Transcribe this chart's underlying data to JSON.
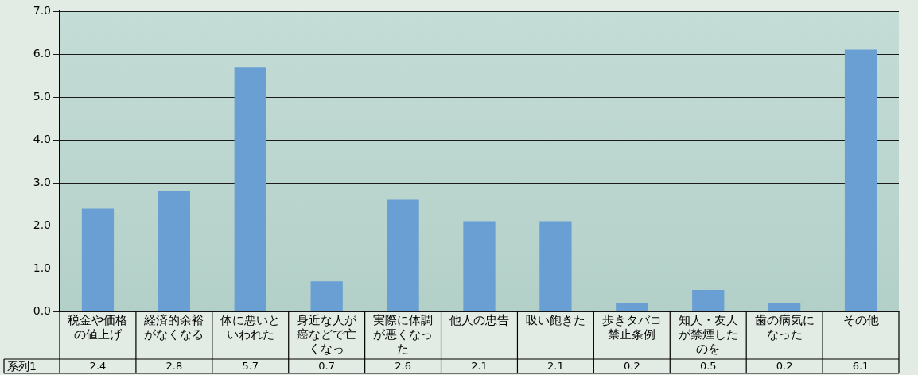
{
  "chart_data": {
    "type": "bar",
    "categories": [
      "税金や価格の値上げ",
      "経済的余裕がなくなる",
      "体に悪いといわれた",
      "身近な人が癌などで亡くなっ",
      "実際に体調が悪くなった",
      "他人の忠告",
      "吸い飽きた",
      "歩きタバコ禁止条例",
      "知人・友人が禁煙したのを",
      "歯の病気になった",
      "その他"
    ],
    "series": [
      {
        "name": "系列1",
        "color": "#6a9fd4",
        "values": [
          2.4,
          2.8,
          5.7,
          0.7,
          2.6,
          2.1,
          2.1,
          0.2,
          0.5,
          0.2,
          6.1
        ]
      }
    ],
    "ylim": [
      0,
      7
    ],
    "yticks": [
      {
        "value": 0,
        "label": "0.0"
      },
      {
        "value": 1,
        "label": "1.0"
      },
      {
        "value": 2,
        "label": "2.0"
      },
      {
        "value": 3,
        "label": "3.0"
      },
      {
        "value": 4,
        "label": "4.0"
      },
      {
        "value": 5,
        "label": "5.0"
      },
      {
        "value": 6,
        "label": "6.0"
      },
      {
        "value": 7,
        "label": "7.0"
      }
    ],
    "grid": "y",
    "data_labels": true
  }
}
